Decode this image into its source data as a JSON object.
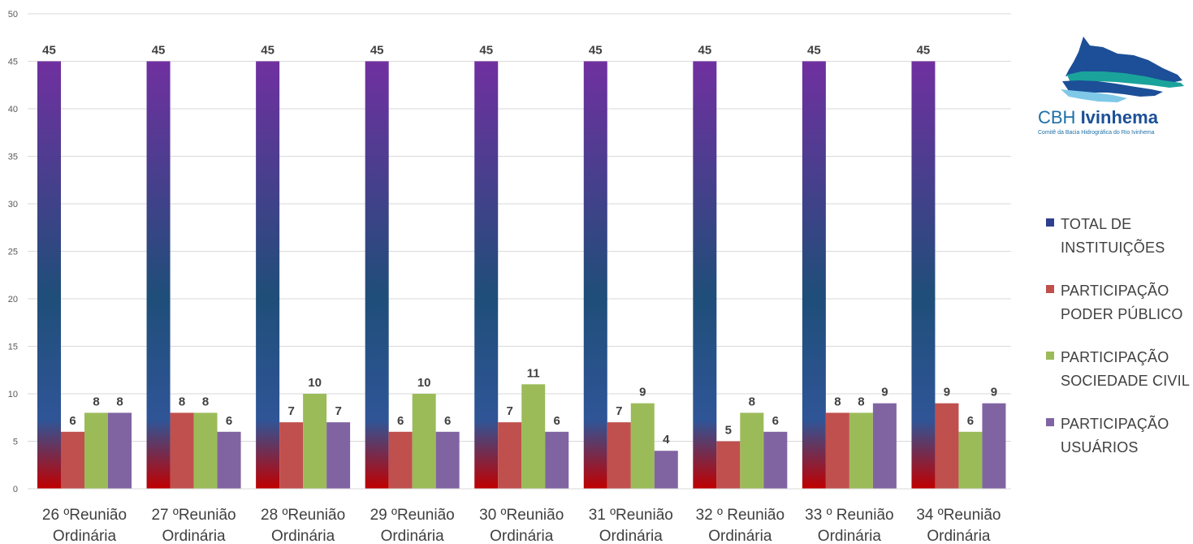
{
  "logo": {
    "name_regular": "CBH ",
    "name_bold": "Ivinhema",
    "subtitle": "Comitê da Bacia Hidrográfica do Rio Ivinhema"
  },
  "chart_data": {
    "type": "bar",
    "title": "",
    "xlabel": "",
    "ylabel": "",
    "ylim": [
      0,
      50
    ],
    "yticks": [
      0,
      5,
      10,
      15,
      20,
      25,
      30,
      35,
      40,
      45,
      50
    ],
    "grid": true,
    "legend_position": "right",
    "categories": [
      [
        "26 ºReunião",
        "Ordinária"
      ],
      [
        "27 ºReunião",
        "Ordinária"
      ],
      [
        "28 ºReunião",
        "Ordinária"
      ],
      [
        "29 ºReunião",
        "Ordinária"
      ],
      [
        "30 ºReunião",
        "Ordinária"
      ],
      [
        "31 ºReunião",
        "Ordinária"
      ],
      [
        "32 º Reunião",
        "Ordinária"
      ],
      [
        "33 º Reunião",
        "Ordinária"
      ],
      [
        "34 ºReunião",
        "Ordinária"
      ]
    ],
    "series": [
      {
        "name": [
          "TOTAL DE",
          "INSTITUIÇÕES"
        ],
        "values": [
          45,
          45,
          45,
          45,
          45,
          45,
          45,
          45,
          45
        ],
        "color": "#7030a0",
        "gradient": [
          "#c00000",
          "#2f5597",
          "#7030a0"
        ]
      },
      {
        "name": [
          "PARTICIPAÇÃO",
          "PODER PÚBLICO"
        ],
        "values": [
          6,
          8,
          7,
          6,
          7,
          7,
          5,
          8,
          9
        ],
        "color": "#c0504d"
      },
      {
        "name": [
          "PARTICIPAÇÃO",
          "SOCIEDADE CIVIL"
        ],
        "values": [
          8,
          8,
          10,
          10,
          11,
          9,
          8,
          8,
          6
        ],
        "color": "#9bbb59"
      },
      {
        "name": [
          "PARTICIPAÇÃO",
          "USUÁRIOS"
        ],
        "values": [
          8,
          6,
          7,
          6,
          6,
          4,
          6,
          9,
          9
        ],
        "color": "#8064a2"
      }
    ]
  }
}
